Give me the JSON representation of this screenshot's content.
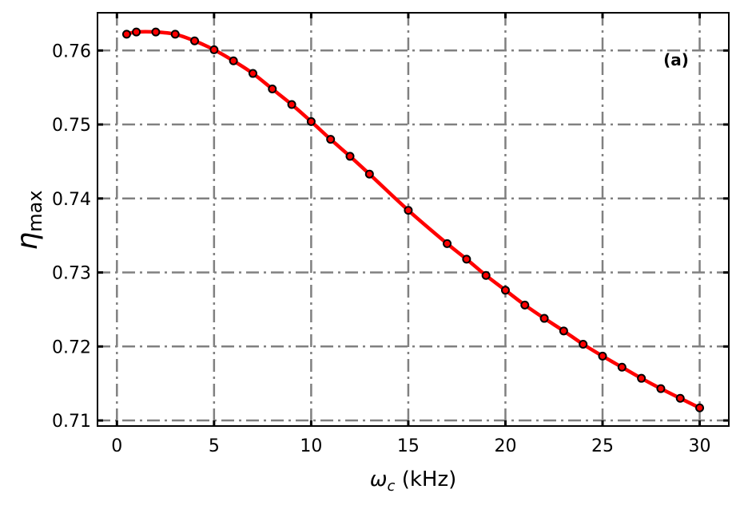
{
  "chart_data": {
    "type": "line",
    "title": "",
    "panel_label": "(a)",
    "xlabel": "ωc (kHz)",
    "xlabel_main": "ω",
    "xlabel_sub": "c",
    "xlabel_unit": " (kHz)",
    "ylabel": "η_max",
    "ylabel_main": "η",
    "ylabel_sub": "max",
    "xlim": [
      -1,
      31.5
    ],
    "ylim": [
      0.70925,
      0.7651
    ],
    "xticks": [
      0,
      5,
      10,
      15,
      20,
      25,
      30
    ],
    "yticks": [
      0.71,
      0.72,
      0.73,
      0.74,
      0.75,
      0.76
    ],
    "xtick_labels": [
      "0",
      "5",
      "10",
      "15",
      "20",
      "25",
      "30"
    ],
    "ytick_labels": [
      "0.71",
      "0.72",
      "0.73",
      "0.74",
      "0.75",
      "0.76"
    ],
    "grid": true,
    "grid_style": "dash-dot",
    "legend": null,
    "series": [
      {
        "name": "η_max",
        "line_color": "#ff0000",
        "marker": "circle",
        "marker_face": "#ff0000",
        "marker_edge": "#000000",
        "x": [
          0.5,
          1,
          2,
          3,
          4,
          5,
          6,
          7,
          8,
          9,
          10,
          11,
          12,
          13,
          15,
          17,
          18,
          19,
          20,
          21,
          22,
          23,
          24,
          25,
          26,
          27,
          28,
          29,
          30
        ],
        "y": [
          0.7622,
          0.7625,
          0.7625,
          0.7622,
          0.7613,
          0.7601,
          0.7586,
          0.7569,
          0.7548,
          0.7527,
          0.7504,
          0.748,
          0.7457,
          0.7433,
          0.7384,
          0.7339,
          0.7318,
          0.7296,
          0.7276,
          0.7256,
          0.7238,
          0.7221,
          0.7203,
          0.7187,
          0.7172,
          0.7157,
          0.7143,
          0.713,
          0.7117
        ]
      }
    ]
  },
  "colors": {
    "line": "#ff0000",
    "grid": "#808080",
    "axis": "#000000"
  }
}
